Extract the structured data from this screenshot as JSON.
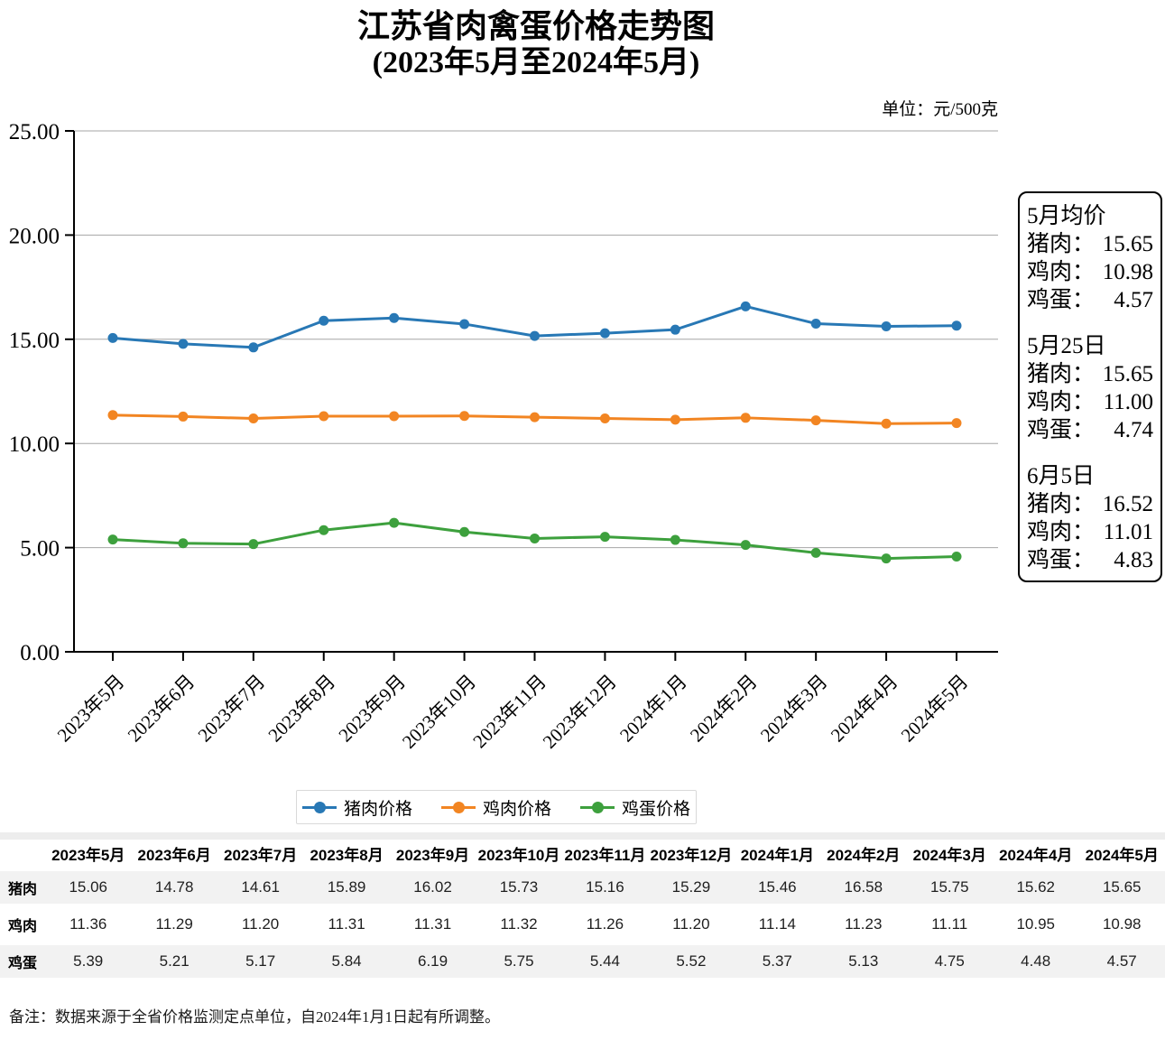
{
  "title": {
    "line1": "江苏省肉禽蛋价格走势图",
    "line2": "(2023年5月至2024年5月)"
  },
  "unit_label": "单位：元/500克",
  "chart_data": {
    "type": "line",
    "categories": [
      "2023年5月",
      "2023年6月",
      "2023年7月",
      "2023年8月",
      "2023年9月",
      "2023年10月",
      "2023年11月",
      "2023年12月",
      "2024年1月",
      "2024年2月",
      "2024年3月",
      "2024年4月",
      "2024年5月"
    ],
    "series": [
      {
        "key": "pork",
        "name": "猪肉价格",
        "color": "#2878B5",
        "values": [
          15.06,
          14.78,
          14.61,
          15.89,
          16.02,
          15.73,
          15.16,
          15.29,
          15.46,
          16.58,
          15.75,
          15.62,
          15.65
        ]
      },
      {
        "key": "chicken",
        "name": "鸡肉价格",
        "color": "#F28522",
        "values": [
          11.36,
          11.29,
          11.2,
          11.31,
          11.31,
          11.32,
          11.26,
          11.2,
          11.14,
          11.23,
          11.11,
          10.95,
          10.98
        ]
      },
      {
        "key": "egg",
        "name": "鸡蛋价格",
        "color": "#3DA03D",
        "values": [
          5.39,
          5.21,
          5.17,
          5.84,
          6.19,
          5.75,
          5.44,
          5.52,
          5.37,
          5.13,
          4.75,
          4.48,
          4.57
        ]
      }
    ],
    "title": "江苏省肉禽蛋价格走势图 (2023年5月至2024年5月)",
    "xlabel": "",
    "ylabel": "",
    "ylim": [
      0,
      25
    ],
    "ytick_step": 5,
    "ytick_labels": [
      "0.00",
      "5.00",
      "10.00",
      "15.00",
      "20.00",
      "25.00"
    ],
    "grid": true,
    "legend_position": "bottom"
  },
  "side_panel": {
    "sections": [
      {
        "heading": "5月均价",
        "rows": [
          {
            "label": "猪肉：",
            "value": "15.65"
          },
          {
            "label": "鸡肉：",
            "value": "10.98"
          },
          {
            "label": "鸡蛋：",
            "value": "4.57"
          }
        ]
      },
      {
        "heading": "5月25日",
        "rows": [
          {
            "label": "猪肉：",
            "value": "15.65"
          },
          {
            "label": "鸡肉：",
            "value": "11.00"
          },
          {
            "label": "鸡蛋：",
            "value": "4.74"
          }
        ]
      },
      {
        "heading": "6月5日",
        "rows": [
          {
            "label": "猪肉：",
            "value": "16.52"
          },
          {
            "label": "鸡肉：",
            "value": "11.01"
          },
          {
            "label": "鸡蛋：",
            "value": "4.83"
          }
        ]
      }
    ]
  },
  "table": {
    "columns": [
      "2023年5月",
      "2023年6月",
      "2023年7月",
      "2023年8月",
      "2023年9月",
      "2023年10月",
      "2023年11月",
      "2023年12月",
      "2024年1月",
      "2024年2月",
      "2024年3月",
      "2024年4月",
      "2024年5月"
    ],
    "rows": [
      {
        "label": "猪肉",
        "values": [
          "15.06",
          "14.78",
          "14.61",
          "15.89",
          "16.02",
          "15.73",
          "15.16",
          "15.29",
          "15.46",
          "16.58",
          "15.75",
          "15.62",
          "15.65"
        ]
      },
      {
        "label": "鸡肉",
        "values": [
          "11.36",
          "11.29",
          "11.20",
          "11.31",
          "11.31",
          "11.32",
          "11.26",
          "11.20",
          "11.14",
          "11.23",
          "11.11",
          "10.95",
          "10.98"
        ]
      },
      {
        "label": "鸡蛋",
        "values": [
          "5.39",
          "5.21",
          "5.17",
          "5.84",
          "6.19",
          "5.75",
          "5.44",
          "5.52",
          "5.37",
          "5.13",
          "4.75",
          "4.48",
          "4.57"
        ]
      }
    ]
  },
  "note": "备注：数据来源于全省价格监测定点单位，自2024年1月1日起有所调整。"
}
